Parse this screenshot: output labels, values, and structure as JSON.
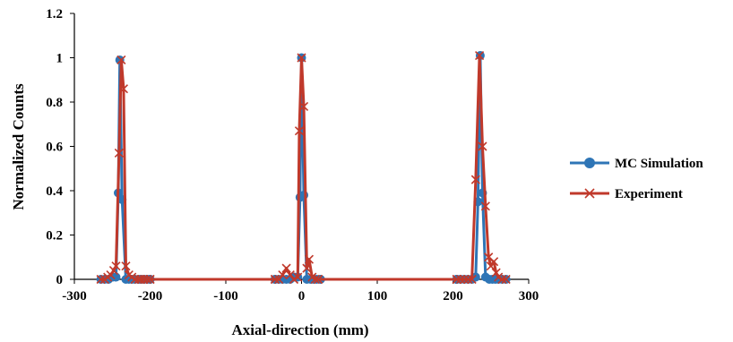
{
  "chart_data": {
    "type": "line",
    "xlabel": "Axial-direction (mm)",
    "ylabel": "Normalized Counts",
    "xlim": [
      -300,
      300
    ],
    "ylim": [
      0,
      1.2
    ],
    "xticks": [
      -300,
      -200,
      -100,
      0,
      100,
      200,
      300
    ],
    "xtick_labels": [
      "-300",
      "-200",
      "-100",
      "0",
      "100",
      "200",
      "300"
    ],
    "yticks": [
      0,
      0.2,
      0.4,
      0.6,
      0.8,
      1,
      1.2
    ],
    "ytick_labels": [
      "0",
      "0.2",
      "0.4",
      "0.6",
      "0.8",
      "1",
      "1.2"
    ],
    "grid": false,
    "legend_position": "right",
    "series": [
      {
        "name": "MC Simulation",
        "color": "#2e75b6",
        "marker": "circle",
        "points": [
          [
            -265,
            0
          ],
          [
            -260,
            0
          ],
          [
            -255,
            0
          ],
          [
            -250,
            0.01
          ],
          [
            -245,
            0.01
          ],
          [
            -242,
            0.39
          ],
          [
            -240,
            0.99
          ],
          [
            -237,
            0.36
          ],
          [
            -232,
            0
          ],
          [
            -228,
            0
          ],
          [
            -224,
            0
          ],
          [
            -220,
            0
          ],
          [
            -215,
            0
          ],
          [
            -212,
            0
          ],
          [
            -208,
            0
          ],
          [
            -204,
            0
          ],
          [
            -200,
            0
          ],
          [
            -200,
            0
          ],
          [
            -35,
            0
          ],
          [
            -35,
            0
          ],
          [
            -30,
            0
          ],
          [
            -25,
            0
          ],
          [
            -20,
            0
          ],
          [
            -15,
            0
          ],
          [
            -10,
            0.01
          ],
          [
            -5,
            0.01
          ],
          [
            -2,
            0.37
          ],
          [
            0,
            1.0
          ],
          [
            3,
            0.38
          ],
          [
            7,
            0
          ],
          [
            12,
            0
          ],
          [
            16,
            0
          ],
          [
            20,
            0
          ],
          [
            25,
            0
          ],
          [
            25,
            0
          ],
          [
            205,
            0
          ],
          [
            205,
            0
          ],
          [
            210,
            0
          ],
          [
            215,
            0
          ],
          [
            220,
            0
          ],
          [
            225,
            0
          ],
          [
            230,
            0.01
          ],
          [
            233,
            0.35
          ],
          [
            236,
            1.01
          ],
          [
            239,
            0.39
          ],
          [
            243,
            0.01
          ],
          [
            248,
            0
          ],
          [
            252,
            0
          ],
          [
            256,
            0
          ],
          [
            260,
            0
          ],
          [
            265,
            0
          ],
          [
            270,
            0
          ]
        ]
      },
      {
        "name": "Experiment",
        "color": "#c0392b",
        "marker": "x",
        "points": [
          [
            -265,
            0
          ],
          [
            -260,
            0
          ],
          [
            -256,
            0.01
          ],
          [
            -252,
            0.02
          ],
          [
            -248,
            0.04
          ],
          [
            -245,
            0.06
          ],
          [
            -241,
            0.57
          ],
          [
            -238,
            0.99
          ],
          [
            -235,
            0.86
          ],
          [
            -232,
            0.06
          ],
          [
            -228,
            0.02
          ],
          [
            -224,
            0.01
          ],
          [
            -220,
            0
          ],
          [
            -215,
            0
          ],
          [
            -212,
            0
          ],
          [
            -208,
            0
          ],
          [
            -204,
            0
          ],
          [
            -200,
            0
          ],
          [
            -200,
            0
          ],
          [
            -35,
            0
          ],
          [
            -35,
            0
          ],
          [
            -30,
            0
          ],
          [
            -25,
            0.02
          ],
          [
            -20,
            0.05
          ],
          [
            -15,
            0.02
          ],
          [
            -10,
            0
          ],
          [
            -5,
            0.01
          ],
          [
            -3,
            0.67
          ],
          [
            0,
            1.0
          ],
          [
            3,
            0.78
          ],
          [
            7,
            0.05
          ],
          [
            10,
            0.09
          ],
          [
            14,
            0.01
          ],
          [
            18,
            0
          ],
          [
            22,
            0
          ],
          [
            22,
            0
          ],
          [
            205,
            0
          ],
          [
            205,
            0
          ],
          [
            210,
            0
          ],
          [
            215,
            0
          ],
          [
            220,
            0
          ],
          [
            225,
            0
          ],
          [
            230,
            0.45
          ],
          [
            235,
            1.01
          ],
          [
            239,
            0.6
          ],
          [
            243,
            0.33
          ],
          [
            247,
            0.1
          ],
          [
            250,
            0.06
          ],
          [
            254,
            0.08
          ],
          [
            257,
            0.03
          ],
          [
            260,
            0.01
          ],
          [
            265,
            0
          ],
          [
            270,
            0
          ]
        ]
      }
    ]
  }
}
